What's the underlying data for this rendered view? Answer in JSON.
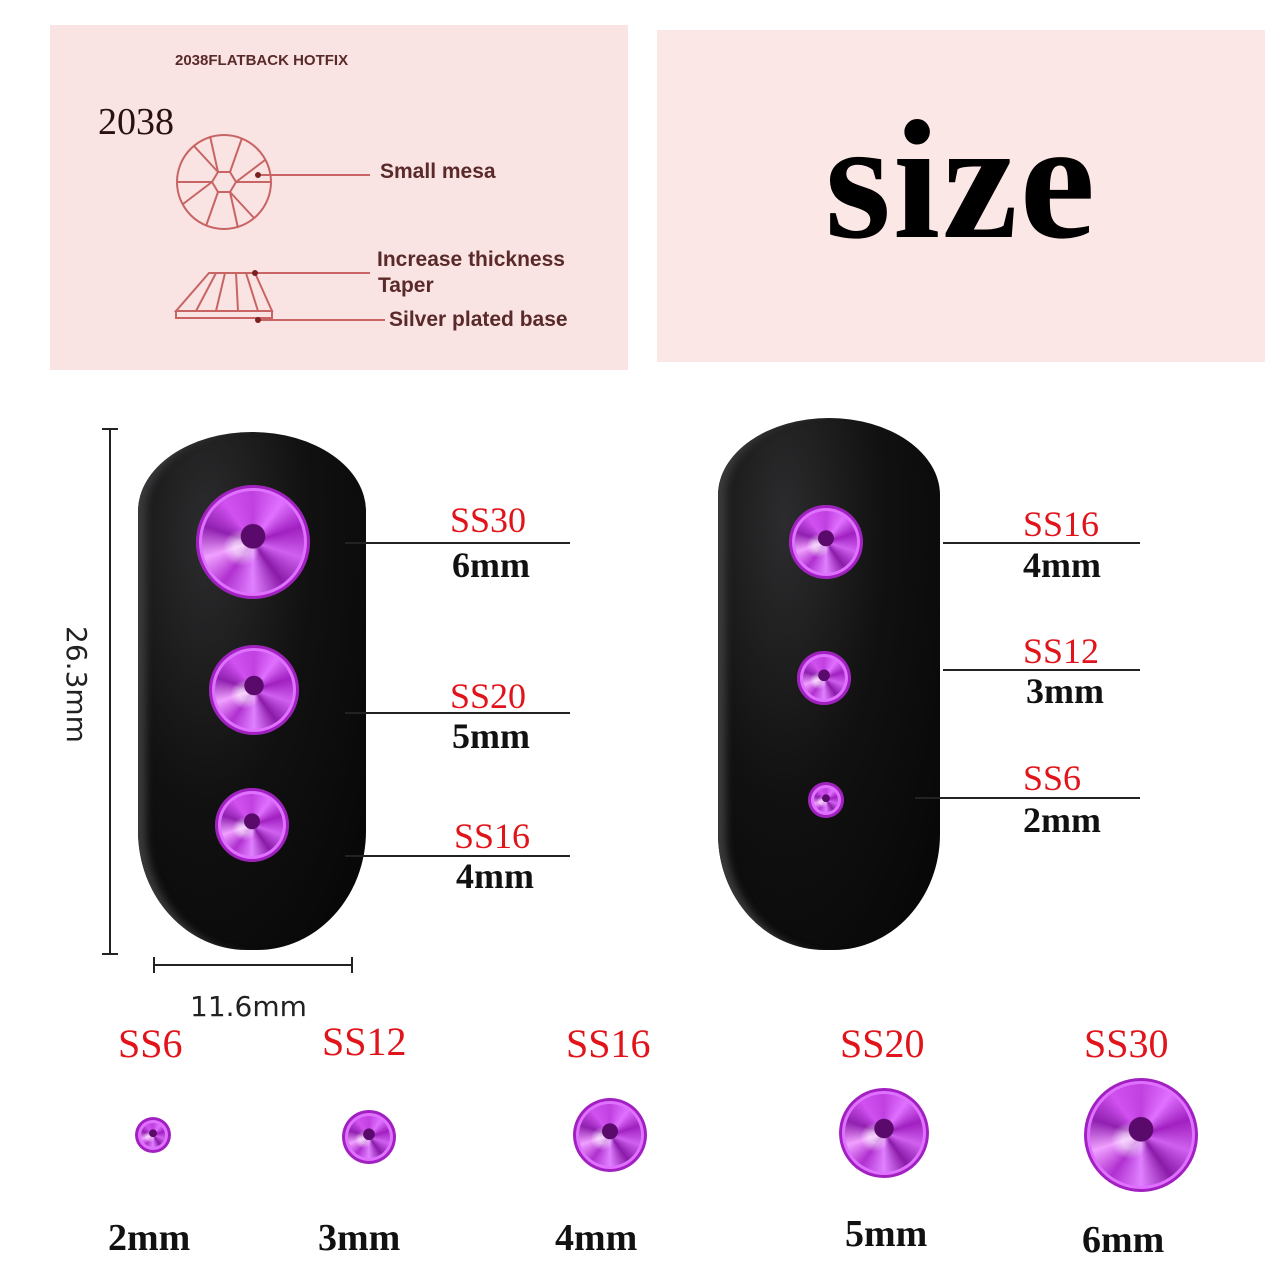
{
  "diagram": {
    "heading": "2038FLATBACK HOTFIX",
    "model": "2038",
    "labels": [
      "Small mesa",
      "Increase thickness",
      "Taper",
      "Silver plated base"
    ]
  },
  "title": "size",
  "dimensions": {
    "height": "26.3mm",
    "width": "11.6mm"
  },
  "left_nail": [
    {
      "ss": "SS30",
      "mm": "6mm"
    },
    {
      "ss": "SS20",
      "mm": "5mm"
    },
    {
      "ss": "SS16",
      "mm": "4mm"
    }
  ],
  "right_nail": [
    {
      "ss": "SS16",
      "mm": "4mm"
    },
    {
      "ss": "SS12",
      "mm": "3mm"
    },
    {
      "ss": "SS6",
      "mm": "2mm"
    }
  ],
  "bottom_row": [
    {
      "ss": "SS6",
      "mm": "2mm"
    },
    {
      "ss": "SS12",
      "mm": "3mm"
    },
    {
      "ss": "SS16",
      "mm": "4mm"
    },
    {
      "ss": "SS20",
      "mm": "5mm"
    },
    {
      "ss": "SS30",
      "mm": "6mm"
    }
  ],
  "colors": {
    "size_code": "#e0141a",
    "gem": "#c040e0",
    "panel": "#f9e4e3",
    "diagram_line": "#c86464"
  }
}
